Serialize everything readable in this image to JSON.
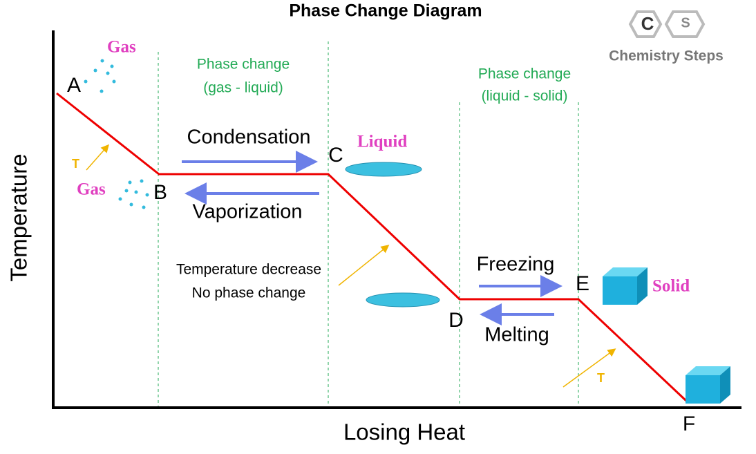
{
  "title": "Phase Change Diagram",
  "logo": {
    "letters": [
      "C",
      "S"
    ],
    "name": "Chemistry Steps"
  },
  "axes": {
    "y": "Temperature",
    "x": "Losing Heat"
  },
  "points": [
    "A",
    "B",
    "C",
    "D",
    "E",
    "F"
  ],
  "states": [
    "Gas",
    "Gas",
    "Liquid",
    "Solid"
  ],
  "regions": [
    {
      "label": [
        "Phase change",
        "(gas - liquid)"
      ]
    },
    {
      "label": [
        "Phase change",
        "(liquid - solid)"
      ]
    }
  ],
  "arrows": [
    "Condensation",
    "Vaporization",
    "Freezing",
    "Melting"
  ],
  "note": [
    "Temperature decrease",
    "No phase change"
  ],
  "temp_marks": [
    "T",
    "T"
  ]
}
